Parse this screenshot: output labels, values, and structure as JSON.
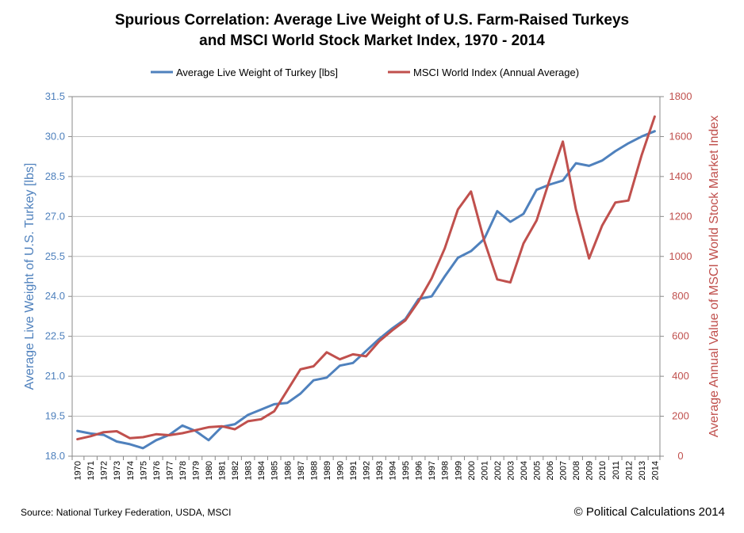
{
  "chart_data": {
    "type": "line",
    "title_lines": [
      "Spurious Correlation: Average Live Weight of U.S. Farm-Raised Turkeys",
      "and MSCI World Stock Market Index, 1970 - 2014"
    ],
    "x": [
      1970,
      1971,
      1972,
      1973,
      1974,
      1975,
      1976,
      1977,
      1978,
      1979,
      1980,
      1981,
      1982,
      1983,
      1984,
      1985,
      1986,
      1987,
      1988,
      1989,
      1990,
      1991,
      1992,
      1993,
      1994,
      1995,
      1996,
      1997,
      1998,
      1999,
      2000,
      2001,
      2002,
      2003,
      2004,
      2005,
      2006,
      2007,
      2008,
      2009,
      2010,
      2011,
      2012,
      2013,
      2014
    ],
    "x_tick_labels": [
      "1970",
      "1971",
      "1972",
      "1973",
      "1974",
      "1975",
      "1976",
      "1977",
      "1978",
      "1979",
      "1980",
      "1981",
      "1982",
      "1983",
      "1984",
      "1985",
      "1986",
      "1987",
      "1988",
      "1989",
      "1990",
      "1991",
      "1992",
      "1993",
      "1994",
      "1995",
      "1996",
      "1997",
      "1998",
      "1999",
      "2000",
      "2001",
      "2002",
      "2003",
      "2004",
      "2005",
      "2006",
      "2007",
      "2008",
      "2009",
      "2010",
      "2011",
      "2012",
      "2013",
      "2014"
    ],
    "y_left": {
      "label": "Average Live Weight of U.S. Turkey [lbs]",
      "range": [
        18.0,
        31.5
      ],
      "ticks": [
        18.0,
        19.5,
        21.0,
        22.5,
        24.0,
        25.5,
        27.0,
        28.5,
        30.0,
        31.5
      ],
      "tick_labels": [
        "18.0",
        "19.5",
        "21.0",
        "22.5",
        "24.0",
        "25.5",
        "27.0",
        "28.5",
        "30.0",
        "31.5"
      ]
    },
    "y_right": {
      "label": "Average Annual Value of MSCI World Stock Market Index",
      "range": [
        0,
        1800
      ],
      "ticks": [
        0,
        200,
        400,
        600,
        800,
        1000,
        1200,
        1400,
        1600,
        1800
      ],
      "tick_labels": [
        "0",
        "200",
        "400",
        "600",
        "800",
        "1000",
        "1200",
        "1400",
        "1600",
        "1800"
      ]
    },
    "series": [
      {
        "name": "Average Live Weight of Turkey [lbs]",
        "axis": "left",
        "color": "#4F81BD",
        "values": [
          18.95,
          18.85,
          18.8,
          18.55,
          18.45,
          18.3,
          18.6,
          18.8,
          19.15,
          18.95,
          18.6,
          19.1,
          19.2,
          19.55,
          19.75,
          19.95,
          20.0,
          20.35,
          20.85,
          20.95,
          21.4,
          21.5,
          21.95,
          22.4,
          22.8,
          23.15,
          23.9,
          24.0,
          24.75,
          25.45,
          25.7,
          26.15,
          27.2,
          26.8,
          27.1,
          28.0,
          28.2,
          28.35,
          29.0,
          28.9,
          29.1,
          29.45,
          29.75,
          30.0,
          30.2
        ]
      },
      {
        "name": "MSCI World Index (Annual Average)",
        "axis": "right",
        "color": "#C0504D",
        "values": [
          85,
          100,
          120,
          125,
          90,
          95,
          110,
          105,
          115,
          130,
          145,
          150,
          135,
          175,
          185,
          225,
          330,
          435,
          450,
          520,
          485,
          510,
          500,
          575,
          630,
          680,
          775,
          890,
          1040,
          1235,
          1325,
          1080,
          885,
          870,
          1065,
          1180,
          1385,
          1575,
          1235,
          990,
          1155,
          1270,
          1280,
          1505,
          1700
        ]
      }
    ],
    "legend": {
      "placement": "top",
      "items": [
        "Average Live Weight of Turkey [lbs]",
        "MSCI World Index (Annual Average)"
      ]
    },
    "grid": true,
    "source": "Source: National Turkey Federation, USDA, MSCI",
    "credit": "© Political Calculations 2014"
  }
}
